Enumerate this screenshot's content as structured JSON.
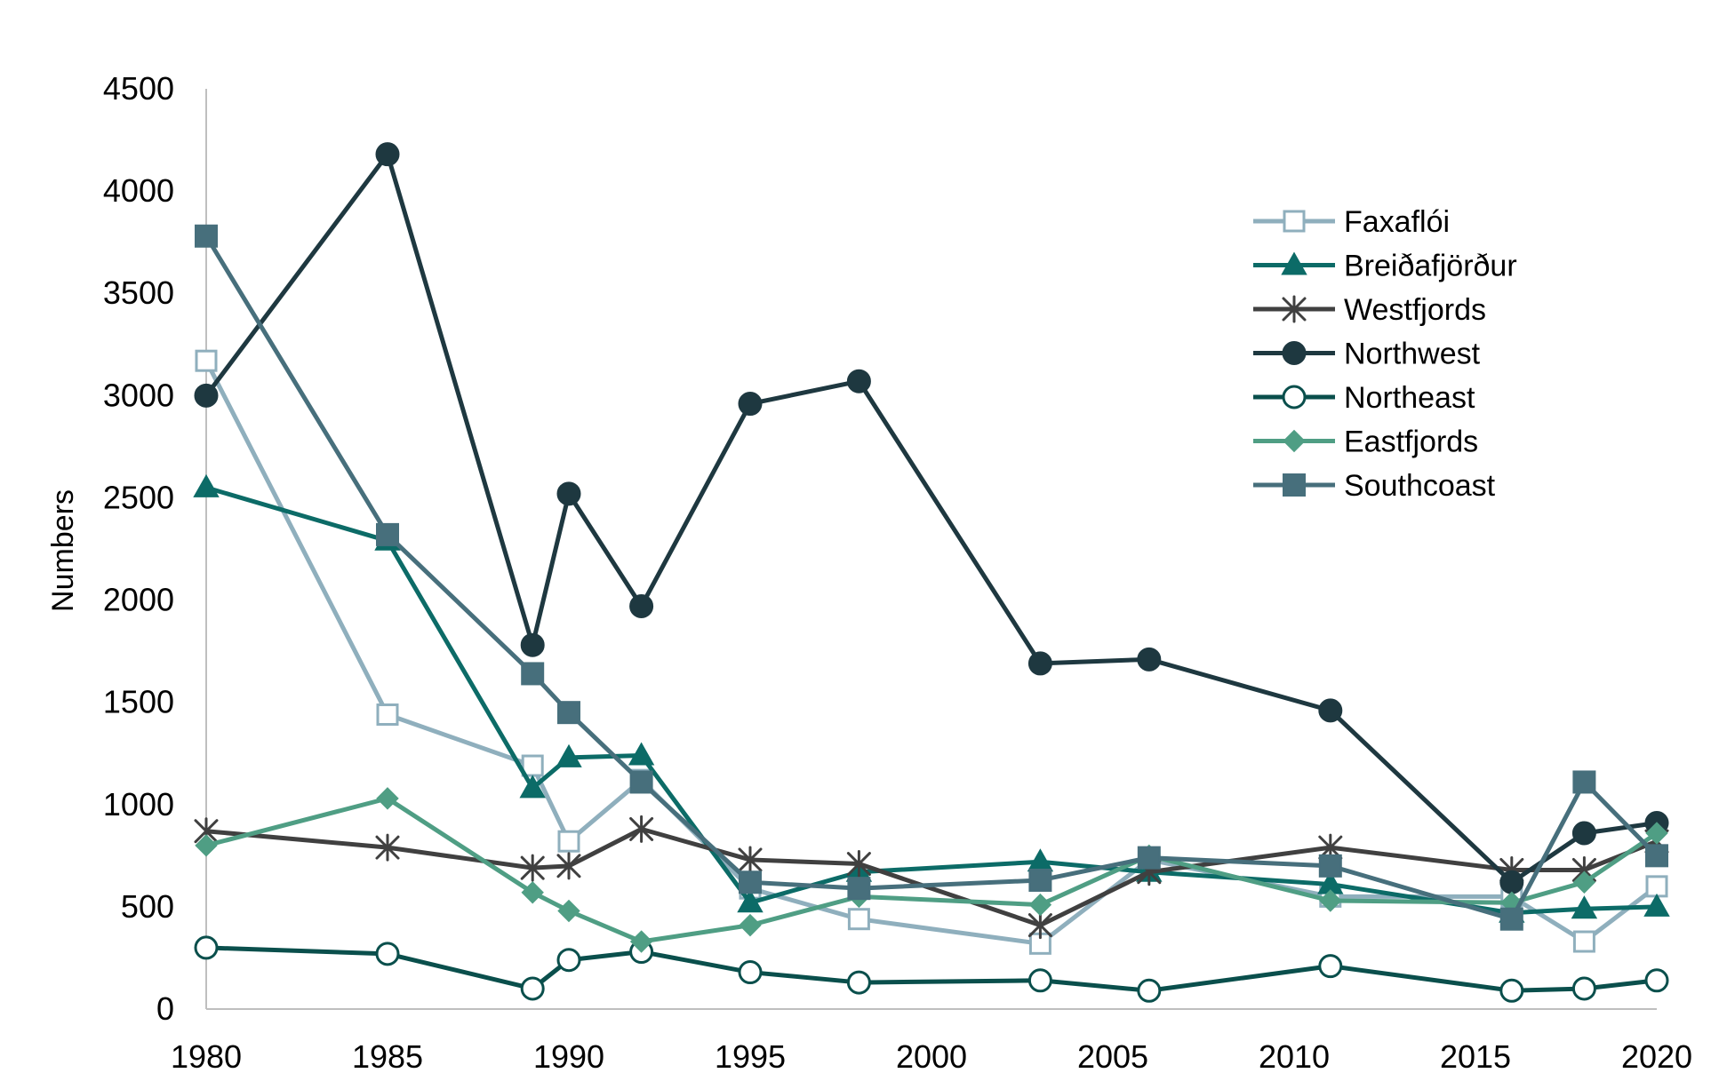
{
  "chart_data": {
    "type": "line",
    "title": "",
    "xlabel": "",
    "ylabel": "Numbers",
    "xlim": [
      1980,
      2020
    ],
    "ylim": [
      0,
      4500
    ],
    "x_ticks": [
      1980,
      1985,
      1990,
      1995,
      2000,
      2005,
      2010,
      2015,
      2020
    ],
    "y_ticks": [
      0,
      500,
      1000,
      1500,
      2000,
      2500,
      3000,
      3500,
      4000,
      4500
    ],
    "grid": false,
    "legend_position": "top-right",
    "series": [
      {
        "name": "Faxaflói",
        "color": "#8fafbd",
        "marker": "square-open",
        "x": [
          1980,
          1985,
          1989,
          1990,
          1992,
          1995,
          1998,
          2003,
          2006,
          2011,
          2016,
          2018,
          2020
        ],
        "y": [
          3170,
          1440,
          1190,
          820,
          1120,
          590,
          440,
          320,
          730,
          550,
          550,
          330,
          600
        ]
      },
      {
        "name": "Breiðafjörður",
        "color": "#0c6b67",
        "marker": "triangle",
        "x": [
          1980,
          1985,
          1989,
          1990,
          1992,
          1995,
          1998,
          2003,
          2006,
          2011,
          2016,
          2018,
          2020
        ],
        "y": [
          2550,
          2290,
          1080,
          1230,
          1240,
          520,
          670,
          720,
          670,
          610,
          470,
          490,
          500
        ]
      },
      {
        "name": "Westfjords",
        "color": "#404040",
        "marker": "asterisk",
        "x": [
          1980,
          1985,
          1989,
          1990,
          1992,
          1995,
          1998,
          2003,
          2006,
          2011,
          2016,
          2018,
          2020
        ],
        "y": [
          870,
          790,
          690,
          700,
          880,
          730,
          710,
          410,
          670,
          790,
          680,
          680,
          820
        ]
      },
      {
        "name": "Northwest",
        "color": "#1e3840",
        "marker": "circle-filled",
        "x": [
          1980,
          1985,
          1989,
          1990,
          1992,
          1995,
          1998,
          2003,
          2006,
          2011,
          2016,
          2018,
          2020
        ],
        "y": [
          3000,
          4180,
          1780,
          2520,
          1970,
          2960,
          3070,
          1690,
          1710,
          1460,
          620,
          860,
          910
        ]
      },
      {
        "name": "Northeast",
        "color": "#0a4f4c",
        "marker": "circle-open",
        "x": [
          1980,
          1985,
          1989,
          1990,
          1992,
          1995,
          1998,
          2003,
          2006,
          2011,
          2016,
          2018,
          2020
        ],
        "y": [
          300,
          270,
          100,
          240,
          280,
          180,
          130,
          140,
          90,
          210,
          90,
          100,
          140
        ]
      },
      {
        "name": "Eastfjords",
        "color": "#4f9e84",
        "marker": "diamond",
        "x": [
          1980,
          1985,
          1989,
          1990,
          1992,
          1995,
          1998,
          2003,
          2006,
          2011,
          2016,
          2018,
          2020
        ],
        "y": [
          800,
          1030,
          570,
          480,
          330,
          410,
          550,
          510,
          750,
          530,
          520,
          620,
          860
        ]
      },
      {
        "name": "Southcoast",
        "color": "#476f7c",
        "marker": "square-filled",
        "x": [
          1980,
          1985,
          1989,
          1990,
          1992,
          1995,
          1998,
          2003,
          2006,
          2011,
          2016,
          2018,
          2020
        ],
        "y": [
          3780,
          2320,
          1640,
          1450,
          1110,
          620,
          590,
          630,
          740,
          700,
          440,
          1110,
          750
        ]
      }
    ]
  }
}
